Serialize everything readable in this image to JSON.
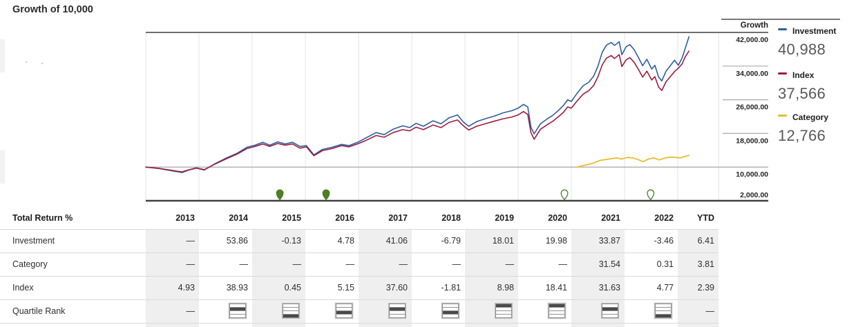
{
  "title": "Growth of 10,000",
  "growth_header": "Growth",
  "legend": [
    {
      "name": "Investment",
      "value": "40,988",
      "color": "#2c5e9e"
    },
    {
      "name": "Index",
      "value": "37,566",
      "color": "#9e1b3e"
    },
    {
      "name": "Category",
      "value": "12,766",
      "color": "#eaba2d"
    }
  ],
  "chart_data": {
    "type": "line",
    "title": "Growth of 10,000",
    "ylabel": "Growth",
    "ylim": [
      2000,
      42000
    ],
    "yticks": [
      "42,000.00",
      "34,000.00",
      "26,000.00",
      "18,000.00",
      "10,000.00",
      "2,000.00"
    ],
    "ytick_values": [
      42000,
      34000,
      26000,
      18000,
      10000,
      2000
    ],
    "x_years": [
      "2013",
      "2014",
      "2015",
      "2016",
      "2017",
      "2018",
      "2019",
      "2020",
      "2021",
      "2022",
      "YTD"
    ],
    "baseline_value": 10000,
    "grid": true,
    "legend_position": "right",
    "marker_color": "#4e7f24",
    "series": [
      {
        "name": "Investment",
        "color": "#2c5e9e",
        "width": 1.6,
        "final": 40988,
        "points": [
          [
            0.0,
            10000
          ],
          [
            0.25,
            9650
          ],
          [
            0.5,
            9100
          ],
          [
            0.68,
            8700
          ],
          [
            0.82,
            9350
          ],
          [
            0.95,
            9750
          ],
          [
            1.1,
            9300
          ],
          [
            1.3,
            10800
          ],
          [
            1.52,
            12200
          ],
          [
            1.72,
            13300
          ],
          [
            1.9,
            14700
          ],
          [
            2.05,
            15200
          ],
          [
            2.2,
            15900
          ],
          [
            2.33,
            15200
          ],
          [
            2.48,
            16000
          ],
          [
            2.62,
            15500
          ],
          [
            2.76,
            15900
          ],
          [
            2.9,
            14900
          ],
          [
            3.02,
            15100
          ],
          [
            3.16,
            12900
          ],
          [
            3.32,
            14200
          ],
          [
            3.5,
            14700
          ],
          [
            3.68,
            15400
          ],
          [
            3.82,
            15100
          ],
          [
            4.0,
            16000
          ],
          [
            4.15,
            17000
          ],
          [
            4.33,
            18200
          ],
          [
            4.48,
            17700
          ],
          [
            4.65,
            19000
          ],
          [
            4.83,
            19800
          ],
          [
            4.96,
            19400
          ],
          [
            5.08,
            20400
          ],
          [
            5.22,
            19700
          ],
          [
            5.4,
            21000
          ],
          [
            5.55,
            20300
          ],
          [
            5.7,
            21700
          ],
          [
            5.86,
            22400
          ],
          [
            5.97,
            20700
          ],
          [
            6.07,
            19700
          ],
          [
            6.22,
            20800
          ],
          [
            6.38,
            21500
          ],
          [
            6.55,
            22100
          ],
          [
            6.72,
            22900
          ],
          [
            6.88,
            23400
          ],
          [
            7.0,
            24000
          ],
          [
            7.1,
            24900
          ],
          [
            7.18,
            24300
          ],
          [
            7.24,
            19500
          ],
          [
            7.3,
            17900
          ],
          [
            7.42,
            20300
          ],
          [
            7.55,
            21500
          ],
          [
            7.65,
            22300
          ],
          [
            7.75,
            23400
          ],
          [
            7.85,
            24600
          ],
          [
            7.93,
            26000
          ],
          [
            8.0,
            25600
          ],
          [
            8.1,
            27400
          ],
          [
            8.22,
            29300
          ],
          [
            8.33,
            30200
          ],
          [
            8.42,
            31600
          ],
          [
            8.5,
            34000
          ],
          [
            8.58,
            37300
          ],
          [
            8.66,
            39000
          ],
          [
            8.75,
            39600
          ],
          [
            8.81,
            38900
          ],
          [
            8.9,
            39800
          ],
          [
            8.95,
            36700
          ],
          [
            9.03,
            38600
          ],
          [
            9.1,
            39100
          ],
          [
            9.18,
            37900
          ],
          [
            9.27,
            35800
          ],
          [
            9.34,
            34100
          ],
          [
            9.42,
            35600
          ],
          [
            9.51,
            33300
          ],
          [
            9.57,
            34200
          ],
          [
            9.64,
            31400
          ],
          [
            9.7,
            30500
          ],
          [
            9.78,
            32800
          ],
          [
            9.86,
            34100
          ],
          [
            9.94,
            35400
          ],
          [
            10.01,
            34200
          ],
          [
            10.08,
            35900
          ],
          [
            10.14,
            38200
          ],
          [
            10.21,
            40988
          ]
        ]
      },
      {
        "name": "Index",
        "color": "#9e1b3e",
        "width": 1.6,
        "final": 37566,
        "points": [
          [
            0.0,
            10000
          ],
          [
            0.25,
            9700
          ],
          [
            0.5,
            9200
          ],
          [
            0.68,
            8850
          ],
          [
            0.82,
            9400
          ],
          [
            0.95,
            9800
          ],
          [
            1.1,
            9400
          ],
          [
            1.3,
            10700
          ],
          [
            1.52,
            12000
          ],
          [
            1.72,
            13100
          ],
          [
            1.9,
            14400
          ],
          [
            2.05,
            14900
          ],
          [
            2.2,
            15500
          ],
          [
            2.33,
            14900
          ],
          [
            2.48,
            15600
          ],
          [
            2.62,
            15200
          ],
          [
            2.76,
            15500
          ],
          [
            2.9,
            14500
          ],
          [
            3.02,
            14800
          ],
          [
            3.16,
            12700
          ],
          [
            3.32,
            13900
          ],
          [
            3.5,
            14400
          ],
          [
            3.68,
            15100
          ],
          [
            3.82,
            14800
          ],
          [
            4.0,
            15600
          ],
          [
            4.15,
            16400
          ],
          [
            4.33,
            17500
          ],
          [
            4.48,
            17100
          ],
          [
            4.65,
            18200
          ],
          [
            4.83,
            18900
          ],
          [
            4.96,
            18600
          ],
          [
            5.08,
            19500
          ],
          [
            5.22,
            18900
          ],
          [
            5.4,
            20000
          ],
          [
            5.55,
            19400
          ],
          [
            5.7,
            20600
          ],
          [
            5.86,
            21200
          ],
          [
            5.97,
            19800
          ],
          [
            6.07,
            18800
          ],
          [
            6.22,
            19700
          ],
          [
            6.38,
            20300
          ],
          [
            6.55,
            20900
          ],
          [
            6.72,
            21500
          ],
          [
            6.88,
            21900
          ],
          [
            7.0,
            22400
          ],
          [
            7.1,
            23200
          ],
          [
            7.18,
            22500
          ],
          [
            7.24,
            18200
          ],
          [
            7.3,
            16600
          ],
          [
            7.42,
            19000
          ],
          [
            7.55,
            20100
          ],
          [
            7.65,
            20900
          ],
          [
            7.75,
            21900
          ],
          [
            7.85,
            23000
          ],
          [
            7.93,
            24300
          ],
          [
            8.0,
            24000
          ],
          [
            8.1,
            25600
          ],
          [
            8.22,
            27300
          ],
          [
            8.33,
            28200
          ],
          [
            8.42,
            29400
          ],
          [
            8.5,
            31500
          ],
          [
            8.58,
            34300
          ],
          [
            8.66,
            35900
          ],
          [
            8.75,
            36500
          ],
          [
            8.81,
            35800
          ],
          [
            8.9,
            36700
          ],
          [
            8.95,
            33900
          ],
          [
            9.03,
            35500
          ],
          [
            9.1,
            36000
          ],
          [
            9.18,
            34900
          ],
          [
            9.27,
            33000
          ],
          [
            9.34,
            31400
          ],
          [
            9.42,
            32800
          ],
          [
            9.51,
            30700
          ],
          [
            9.57,
            31500
          ],
          [
            9.64,
            29000
          ],
          [
            9.7,
            28200
          ],
          [
            9.78,
            30300
          ],
          [
            9.86,
            31500
          ],
          [
            9.94,
            32700
          ],
          [
            10.01,
            33500
          ],
          [
            10.08,
            34500
          ],
          [
            10.14,
            36200
          ],
          [
            10.21,
            37566
          ]
        ]
      },
      {
        "name": "Category",
        "color": "#eaba2d",
        "width": 1.8,
        "final": 12766,
        "points": [
          [
            8.1,
            10000
          ],
          [
            8.25,
            10450
          ],
          [
            8.4,
            10900
          ],
          [
            8.55,
            11600
          ],
          [
            8.7,
            11900
          ],
          [
            8.85,
            12200
          ],
          [
            8.95,
            11900
          ],
          [
            9.05,
            12300
          ],
          [
            9.15,
            12200
          ],
          [
            9.25,
            11800
          ],
          [
            9.35,
            11300
          ],
          [
            9.45,
            11900
          ],
          [
            9.55,
            12200
          ],
          [
            9.65,
            11700
          ],
          [
            9.75,
            12100
          ],
          [
            9.85,
            12400
          ],
          [
            9.95,
            12300
          ],
          [
            10.05,
            12200
          ],
          [
            10.13,
            12500
          ],
          [
            10.21,
            12766
          ]
        ]
      }
    ],
    "event_markers": [
      {
        "f": 2.52,
        "style": "filled"
      },
      {
        "f": 3.39,
        "style": "filled"
      },
      {
        "f": 7.87,
        "style": "open"
      },
      {
        "f": 9.49,
        "style": "open"
      }
    ]
  },
  "table": {
    "label_header": "Total Return %",
    "columns": [
      "2013",
      "2014",
      "2015",
      "2016",
      "2017",
      "2018",
      "2019",
      "2020",
      "2021",
      "2022",
      "YTD"
    ],
    "rows": [
      {
        "label": "Investment",
        "values": [
          "—",
          "53.86",
          "-0.13",
          "4.78",
          "41.06",
          "-6.79",
          "18.01",
          "19.98",
          "33.87",
          "-3.46",
          "6.41"
        ]
      },
      {
        "label": "Category",
        "values": [
          "—",
          "—",
          "—",
          "—",
          "—",
          "—",
          "—",
          "—",
          "31.54",
          "0.31",
          "3.81"
        ]
      },
      {
        "label": "Index",
        "values": [
          "4.93",
          "38.93",
          "0.45",
          "5.15",
          "37.60",
          "-1.81",
          "8.98",
          "18.41",
          "31.63",
          "4.77",
          "2.39"
        ]
      }
    ],
    "quartile_row": {
      "label": "Quartile Rank",
      "values": [
        "—",
        2,
        4,
        3,
        2,
        3,
        1,
        1,
        2,
        4,
        "—"
      ]
    }
  }
}
